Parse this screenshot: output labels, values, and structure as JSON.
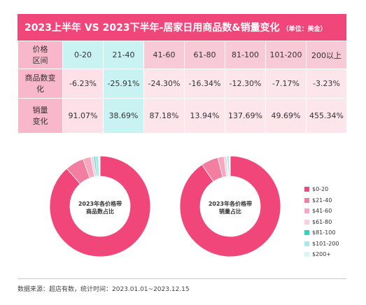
{
  "title": "2023上半年 VS 2023下半年-居家日用商品数&销量变化",
  "title_unit": "（单位：美金）",
  "table": {
    "header_label": "价格区间",
    "price_ranges": [
      "0-20",
      "21-40",
      "41-60",
      "61-80",
      "81-100",
      "101-200",
      "200以上"
    ],
    "rows": [
      {
        "label": "商品数变化",
        "values": [
          "-6.23%",
          "-25.91%",
          "-24.30%",
          "-16.34%",
          "-12.30%",
          "-7.17%",
          "-3.23%"
        ]
      },
      {
        "label": "销量变化",
        "values": [
          "91.07%",
          "38.69%",
          "87.18%",
          "13.94%",
          "137.69%",
          "49.69%",
          "455.34%"
        ]
      }
    ]
  },
  "chart_data": [
    {
      "type": "pie",
      "title": "2023年各价格带商品数占比",
      "categories": [
        "$0-20",
        "$21-40",
        "$41-60",
        "$61-80",
        "$81-100",
        "$101-200",
        "$200+"
      ],
      "values": [
        88.5,
        6.0,
        2.5,
        1.0,
        0.5,
        1.0,
        0.5
      ]
    },
    {
      "type": "pie",
      "title": "2023年各价格带销量占比",
      "categories": [
        "$0-20",
        "$21-40",
        "$41-60",
        "$61-80",
        "$81-100",
        "$101-200",
        "$200+"
      ],
      "values": [
        90.5,
        5.5,
        2.0,
        0.8,
        0.3,
        0.6,
        0.3
      ]
    }
  ],
  "legend": [
    {
      "label": "$0-20",
      "color": "#f1467a"
    },
    {
      "label": "$21-40",
      "color": "#f47ea1"
    },
    {
      "label": "$41-60",
      "color": "#f7a8bf"
    },
    {
      "label": "$61-80",
      "color": "#fbd0dd"
    },
    {
      "label": "$81-100",
      "color": "#2fd3c3"
    },
    {
      "label": "$101-200",
      "color": "#a6e9e9"
    },
    {
      "label": "$200+",
      "color": "#d9f6f6"
    }
  ],
  "center_labels": [
    [
      "2023年各价格带",
      "商品数占比"
    ],
    [
      "2023年各价格带",
      "销量占比"
    ]
  ],
  "source": "数据来源：超店有数，统计时间：2023.01.01~2023.12.15"
}
